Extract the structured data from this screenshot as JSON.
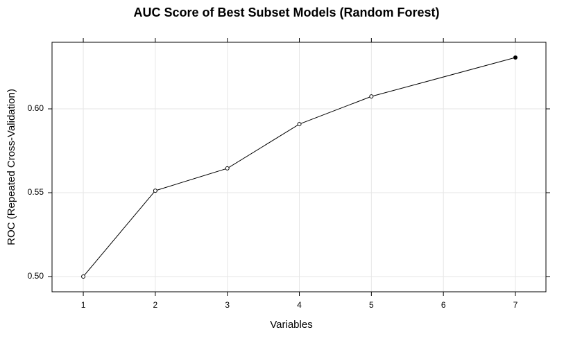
{
  "chart_data": {
    "type": "line",
    "title": "AUC Score of Best Subset Models (Random Forest)",
    "x_label": "Variables",
    "y_label": "ROC (Repeated Cross-Validation)",
    "x": [
      1,
      2,
      3,
      4,
      5,
      7
    ],
    "values": [
      0.5,
      0.5512,
      0.5645,
      0.5909,
      0.6074,
      0.6306
    ],
    "color": "#000000",
    "point_fills": [
      "#ffffff",
      "#ffffff",
      "#ffffff",
      "#ffffff",
      "#ffffff",
      "#000000"
    ],
    "xlim": [
      0.566,
      7.424
    ],
    "ylim": [
      0.4909,
      0.6397
    ],
    "xticks": [
      1,
      2,
      3,
      4,
      5,
      6,
      7
    ],
    "yticks": [
      {
        "value": 0.5,
        "label": "0.50"
      },
      0.55,
      {
        "value": 0.6,
        "label": "0.60"
      }
    ],
    "grid": true
  }
}
